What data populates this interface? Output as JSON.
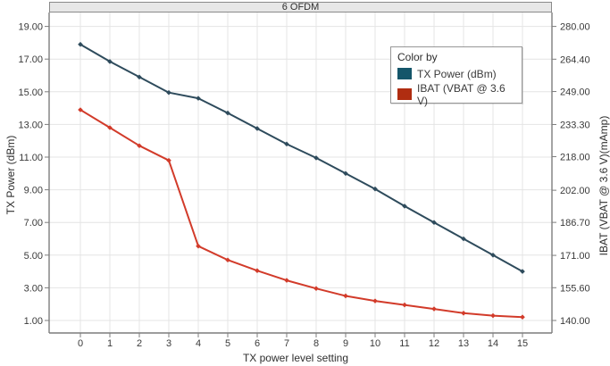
{
  "window": {
    "title": "6 OFDM"
  },
  "legend": {
    "title": "Color by",
    "items": [
      {
        "label": "TX Power (dBm)"
      },
      {
        "label": "IBAT (VBAT @ 3.6 V)"
      }
    ]
  },
  "chart_data": {
    "type": "line",
    "title": "6 OFDM",
    "grid": true,
    "legend_position": "top-right-inside",
    "x": [
      0,
      1,
      2,
      3,
      4,
      5,
      6,
      7,
      8,
      9,
      10,
      11,
      12,
      13,
      14,
      15
    ],
    "series": [
      {
        "name": "TX Power (dBm)",
        "axis": "left",
        "color_line": "#2e4b5c",
        "color_swatch": "#15566a",
        "values": [
          17.9,
          16.85,
          15.9,
          14.95,
          14.6,
          13.7,
          12.75,
          11.8,
          10.95,
          10.0,
          9.05,
          8.0,
          7.0,
          6.0,
          5.0,
          4.0
        ]
      },
      {
        "name": "IBAT (VBAT @ 3.6 V)",
        "axis": "right",
        "unit": "mAmp",
        "color_line": "#d23b2a",
        "color_swatch": "#b02d11",
        "values": [
          240.3,
          231.8,
          223.2,
          216.2,
          175.4,
          168.8,
          163.7,
          159.1,
          155.2,
          151.7,
          149.3,
          147.4,
          145.5,
          143.5,
          142.3,
          141.6
        ]
      }
    ],
    "axes": {
      "left": {
        "title": "TX Power (dBm)",
        "tick_values": [
          19,
          17,
          15,
          13,
          11,
          9,
          7,
          5,
          3,
          1
        ],
        "tick_labels": [
          "19.00",
          "17.00",
          "15.00",
          "13.00",
          "11.00",
          "9.00",
          "7.00",
          "5.00",
          "3.00",
          "1.00"
        ],
        "range": [
          0.25,
          19.85
        ]
      },
      "right": {
        "title": "IBAT (VBAT @ 3.6 V)(mAmp)",
        "tick_values": [
          280.0,
          264.4,
          249.0,
          233.3,
          218.0,
          202.0,
          186.7,
          171.0,
          155.6,
          140.0
        ],
        "tick_labels": [
          "280.00",
          "264.40",
          "249.00",
          "233.30",
          "218.00",
          "202.00",
          "186.70",
          "171.00",
          "155.60",
          "140.00"
        ],
        "range": [
          134.2,
          286.6
        ]
      },
      "bottom": {
        "title": "TX power level setting",
        "tick_labels": [
          "0",
          "1",
          "2",
          "3",
          "4",
          "5",
          "6",
          "7",
          "8",
          "9",
          "10",
          "11",
          "12",
          "13",
          "14",
          "15"
        ]
      }
    }
  },
  "colors": {
    "grid": "#e4e4e4",
    "axis": "#7d7d7d",
    "tick_text": "#3a3a3a",
    "titlebar_bg": "#e7e7e7"
  }
}
